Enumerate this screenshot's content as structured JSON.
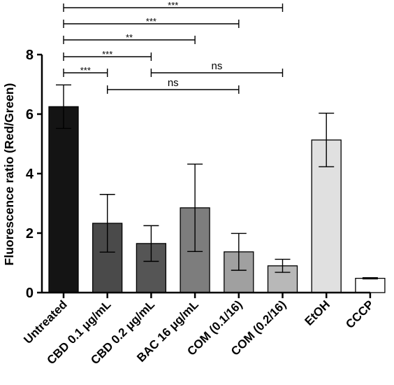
{
  "chart_data": {
    "type": "bar",
    "ylabel": "Fluorescence ratio (Red/Green)",
    "ylim": [
      0,
      8
    ],
    "yticks": [
      0,
      2,
      4,
      6,
      8
    ],
    "categories": [
      "Untreated",
      "CBD 0.1 μg/mL",
      "CBD 0.2 μg/mL",
      "BAC 16 μg/mL",
      "COM (0.1/16)",
      "COM (0.2/16)",
      "EtOH",
      "CCCP"
    ],
    "values": [
      6.25,
      2.33,
      1.65,
      2.85,
      1.37,
      0.9,
      5.13,
      0.48
    ],
    "errors": [
      0.73,
      0.97,
      0.6,
      1.47,
      0.62,
      0.22,
      0.9,
      0.02
    ],
    "bar_colors": [
      "#141414",
      "#4a4a4a",
      "#555555",
      "#7d7d7d",
      "#a0a0a0",
      "#b8b8b8",
      "#e0e0e0",
      "#ffffff"
    ],
    "significance": [
      {
        "from": 0,
        "to": 5,
        "label": "***"
      },
      {
        "from": 0,
        "to": 4,
        "label": "***"
      },
      {
        "from": 0,
        "to": 3,
        "label": "**"
      },
      {
        "from": 0,
        "to": 2,
        "label": "***"
      },
      {
        "from": 0,
        "to": 1,
        "label": "***"
      },
      {
        "from": 2,
        "to": 5,
        "label": "ns"
      },
      {
        "from": 1,
        "to": 4,
        "label": "ns"
      }
    ],
    "grid": false,
    "legend": "none"
  }
}
